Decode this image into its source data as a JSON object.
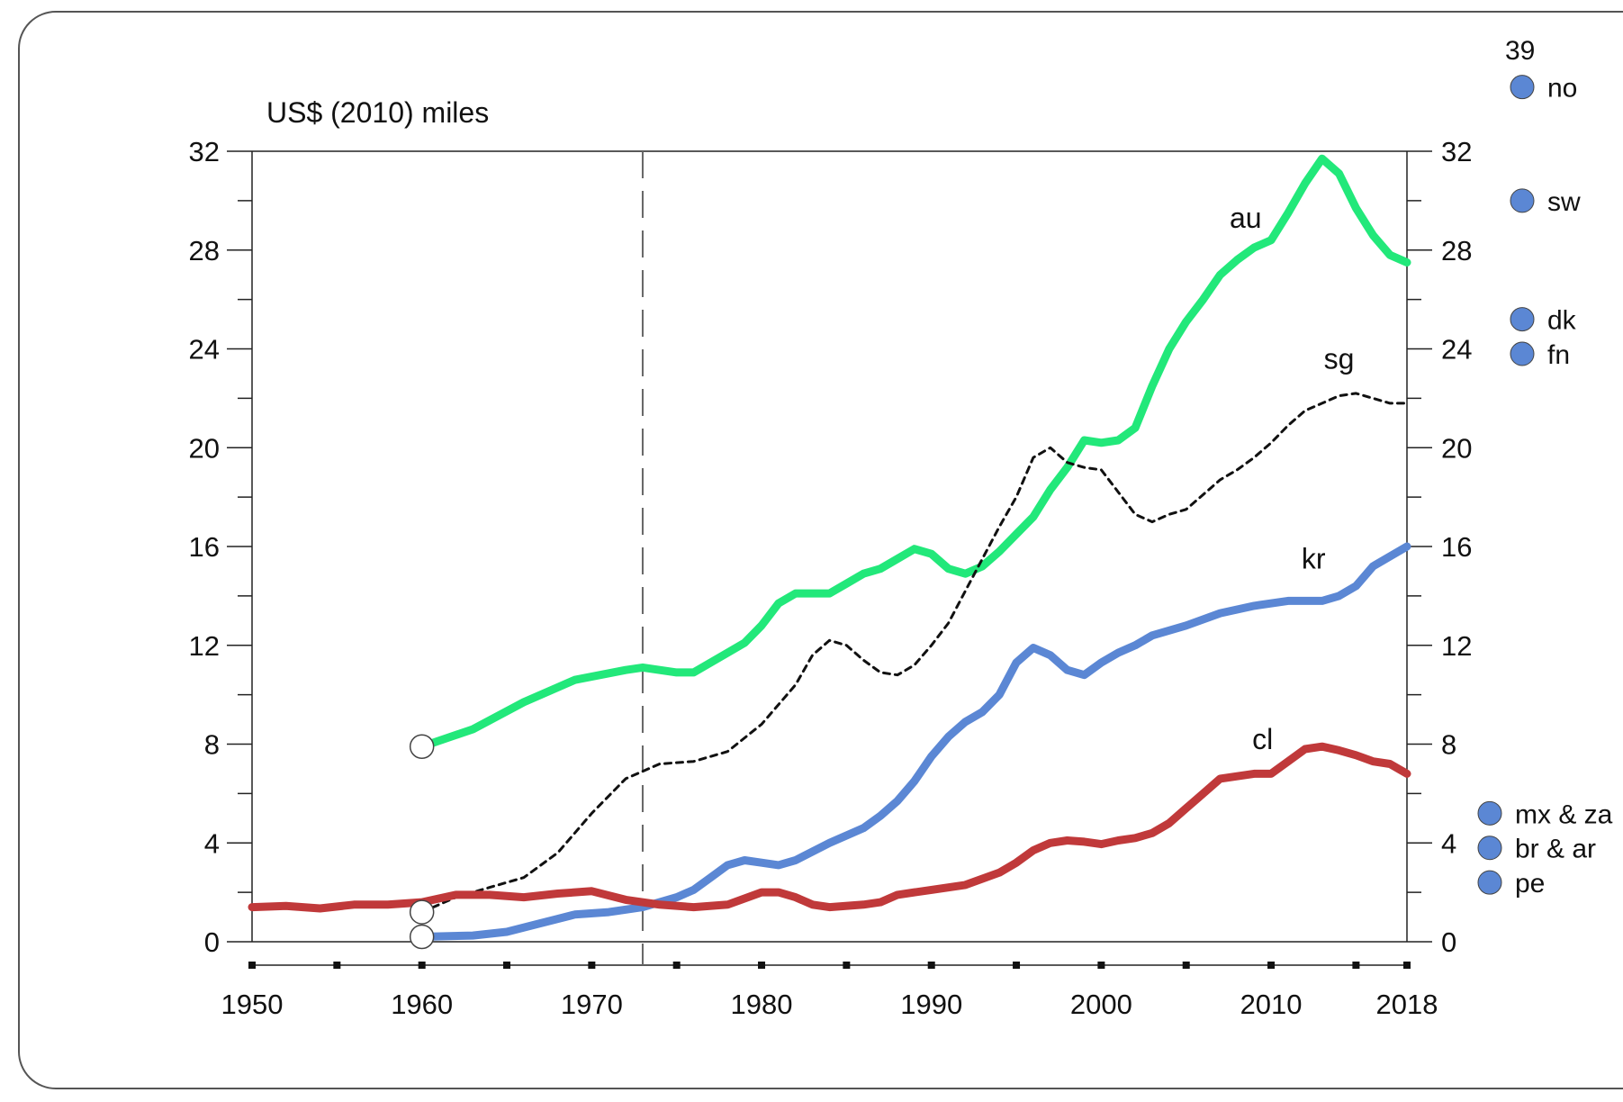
{
  "chart_data": {
    "type": "line",
    "title": "",
    "ylabel": "US$ (2010) miles",
    "xlabel": "",
    "xlim": [
      1950,
      2018
    ],
    "ylim": [
      0,
      32
    ],
    "x_ticks": [
      1950,
      1960,
      1970,
      1980,
      1990,
      2000,
      2010,
      2018
    ],
    "y_ticks": [
      0,
      4,
      8,
      12,
      16,
      20,
      24,
      28,
      32
    ],
    "grid": false,
    "reference_line_x": 1973,
    "series": [
      {
        "name": "au",
        "color": "#22e87a",
        "style": "solid",
        "points": [
          [
            1960,
            7.9
          ],
          [
            1963,
            8.6
          ],
          [
            1966,
            9.7
          ],
          [
            1969,
            10.6
          ],
          [
            1972,
            11.0
          ],
          [
            1973,
            11.1
          ],
          [
            1975,
            10.9
          ],
          [
            1976,
            10.9
          ],
          [
            1978,
            11.7
          ],
          [
            1979,
            12.1
          ],
          [
            1980,
            12.8
          ],
          [
            1981,
            13.7
          ],
          [
            1982,
            14.1
          ],
          [
            1984,
            14.1
          ],
          [
            1985,
            14.5
          ],
          [
            1986,
            14.9
          ],
          [
            1987,
            15.1
          ],
          [
            1988,
            15.5
          ],
          [
            1989,
            15.9
          ],
          [
            1990,
            15.7
          ],
          [
            1991,
            15.1
          ],
          [
            1992,
            14.9
          ],
          [
            1993,
            15.2
          ],
          [
            1994,
            15.8
          ],
          [
            1995,
            16.5
          ],
          [
            1996,
            17.2
          ],
          [
            1997,
            18.3
          ],
          [
            1998,
            19.2
          ],
          [
            1999,
            20.3
          ],
          [
            2000,
            20.2
          ],
          [
            2001,
            20.3
          ],
          [
            2002,
            20.8
          ],
          [
            2003,
            22.5
          ],
          [
            2004,
            24.0
          ],
          [
            2005,
            25.1
          ],
          [
            2006,
            26.0
          ],
          [
            2007,
            27.0
          ],
          [
            2008,
            27.6
          ],
          [
            2009,
            28.1
          ],
          [
            2010,
            28.4
          ],
          [
            2011,
            29.5
          ],
          [
            2012,
            30.7
          ],
          [
            2013,
            31.7
          ],
          [
            2014,
            31.1
          ],
          [
            2015,
            29.7
          ],
          [
            2016,
            28.6
          ],
          [
            2017,
            27.8
          ],
          [
            2018,
            27.5
          ]
        ]
      },
      {
        "name": "sg",
        "color": "#111111",
        "style": "dotted",
        "points": [
          [
            1960,
            1.2
          ],
          [
            1962,
            1.8
          ],
          [
            1964,
            2.2
          ],
          [
            1966,
            2.6
          ],
          [
            1968,
            3.6
          ],
          [
            1970,
            5.2
          ],
          [
            1972,
            6.6
          ],
          [
            1974,
            7.2
          ],
          [
            1976,
            7.3
          ],
          [
            1978,
            7.7
          ],
          [
            1980,
            8.8
          ],
          [
            1982,
            10.4
          ],
          [
            1983,
            11.6
          ],
          [
            1984,
            12.2
          ],
          [
            1985,
            12.0
          ],
          [
            1986,
            11.4
          ],
          [
            1987,
            10.9
          ],
          [
            1988,
            10.8
          ],
          [
            1989,
            11.2
          ],
          [
            1990,
            12.0
          ],
          [
            1991,
            12.9
          ],
          [
            1992,
            14.2
          ],
          [
            1993,
            15.5
          ],
          [
            1994,
            16.8
          ],
          [
            1995,
            18.0
          ],
          [
            1996,
            19.6
          ],
          [
            1997,
            20.0
          ],
          [
            1998,
            19.4
          ],
          [
            1999,
            19.2
          ],
          [
            2000,
            19.1
          ],
          [
            2001,
            18.2
          ],
          [
            2002,
            17.3
          ],
          [
            2003,
            17.0
          ],
          [
            2004,
            17.3
          ],
          [
            2005,
            17.5
          ],
          [
            2006,
            18.1
          ],
          [
            2007,
            18.7
          ],
          [
            2008,
            19.1
          ],
          [
            2009,
            19.6
          ],
          [
            2010,
            20.2
          ],
          [
            2011,
            20.9
          ],
          [
            2012,
            21.5
          ],
          [
            2013,
            21.8
          ],
          [
            2014,
            22.1
          ],
          [
            2015,
            22.2
          ],
          [
            2016,
            22.0
          ],
          [
            2017,
            21.8
          ],
          [
            2018,
            21.8
          ]
        ]
      },
      {
        "name": "kr",
        "color": "#5b87d4",
        "style": "solid",
        "points": [
          [
            1960,
            0.2
          ],
          [
            1963,
            0.25
          ],
          [
            1965,
            0.4
          ],
          [
            1967,
            0.75
          ],
          [
            1969,
            1.1
          ],
          [
            1971,
            1.2
          ],
          [
            1973,
            1.4
          ],
          [
            1975,
            1.8
          ],
          [
            1976,
            2.1
          ],
          [
            1977,
            2.6
          ],
          [
            1978,
            3.1
          ],
          [
            1979,
            3.3
          ],
          [
            1980,
            3.2
          ],
          [
            1981,
            3.1
          ],
          [
            1982,
            3.3
          ],
          [
            1984,
            4.0
          ],
          [
            1986,
            4.6
          ],
          [
            1987,
            5.1
          ],
          [
            1988,
            5.7
          ],
          [
            1989,
            6.5
          ],
          [
            1990,
            7.5
          ],
          [
            1991,
            8.3
          ],
          [
            1992,
            8.9
          ],
          [
            1993,
            9.3
          ],
          [
            1994,
            10.0
          ],
          [
            1995,
            11.3
          ],
          [
            1996,
            11.9
          ],
          [
            1997,
            11.6
          ],
          [
            1998,
            11.0
          ],
          [
            1999,
            10.8
          ],
          [
            2000,
            11.3
          ],
          [
            2001,
            11.7
          ],
          [
            2002,
            12.0
          ],
          [
            2003,
            12.4
          ],
          [
            2005,
            12.8
          ],
          [
            2007,
            13.3
          ],
          [
            2009,
            13.6
          ],
          [
            2011,
            13.8
          ],
          [
            2013,
            13.8
          ],
          [
            2014,
            14.0
          ],
          [
            2015,
            14.4
          ],
          [
            2016,
            15.2
          ],
          [
            2017,
            15.6
          ],
          [
            2018,
            16.0
          ]
        ]
      },
      {
        "name": "cl",
        "color": "#c0393a",
        "style": "solid",
        "points": [
          [
            1950,
            1.4
          ],
          [
            1952,
            1.45
          ],
          [
            1954,
            1.35
          ],
          [
            1956,
            1.5
          ],
          [
            1958,
            1.5
          ],
          [
            1960,
            1.6
          ],
          [
            1962,
            1.9
          ],
          [
            1964,
            1.9
          ],
          [
            1966,
            1.8
          ],
          [
            1968,
            1.95
          ],
          [
            1970,
            2.05
          ],
          [
            1972,
            1.7
          ],
          [
            1974,
            1.5
          ],
          [
            1976,
            1.4
          ],
          [
            1978,
            1.5
          ],
          [
            1980,
            2.0
          ],
          [
            1981,
            2.0
          ],
          [
            1982,
            1.8
          ],
          [
            1983,
            1.5
          ],
          [
            1984,
            1.4
          ],
          [
            1986,
            1.5
          ],
          [
            1987,
            1.6
          ],
          [
            1988,
            1.9
          ],
          [
            1990,
            2.1
          ],
          [
            1992,
            2.3
          ],
          [
            1994,
            2.8
          ],
          [
            1995,
            3.2
          ],
          [
            1996,
            3.7
          ],
          [
            1997,
            4.0
          ],
          [
            1998,
            4.1
          ],
          [
            1999,
            4.05
          ],
          [
            2000,
            3.95
          ],
          [
            2001,
            4.1
          ],
          [
            2002,
            4.2
          ],
          [
            2003,
            4.4
          ],
          [
            2004,
            4.8
          ],
          [
            2005,
            5.4
          ],
          [
            2006,
            6.0
          ],
          [
            2007,
            6.6
          ],
          [
            2008,
            6.7
          ],
          [
            2009,
            6.8
          ],
          [
            2010,
            6.8
          ],
          [
            2011,
            7.3
          ],
          [
            2012,
            7.8
          ],
          [
            2013,
            7.9
          ],
          [
            2014,
            7.75
          ],
          [
            2015,
            7.55
          ],
          [
            2016,
            7.3
          ],
          [
            2017,
            7.2
          ],
          [
            2018,
            6.8
          ]
        ]
      }
    ],
    "start_markers": [
      {
        "x": 1960,
        "y": 7.9
      },
      {
        "x": 1960,
        "y": 1.2
      },
      {
        "x": 1960,
        "y": 0.2
      }
    ],
    "side_markers": [
      {
        "label": "39",
        "y": null
      },
      {
        "label": "no",
        "y": 34.6
      },
      {
        "label": "sw",
        "y": 30.0
      },
      {
        "label": "dk",
        "y": 25.2
      },
      {
        "label": "fn",
        "y": 23.8
      },
      {
        "label": "mx & za",
        "y": 5.2
      },
      {
        "label": "br & ar",
        "y": 3.8
      },
      {
        "label": "pe",
        "y": 2.4
      }
    ],
    "marker_color": "#5b87d4"
  }
}
